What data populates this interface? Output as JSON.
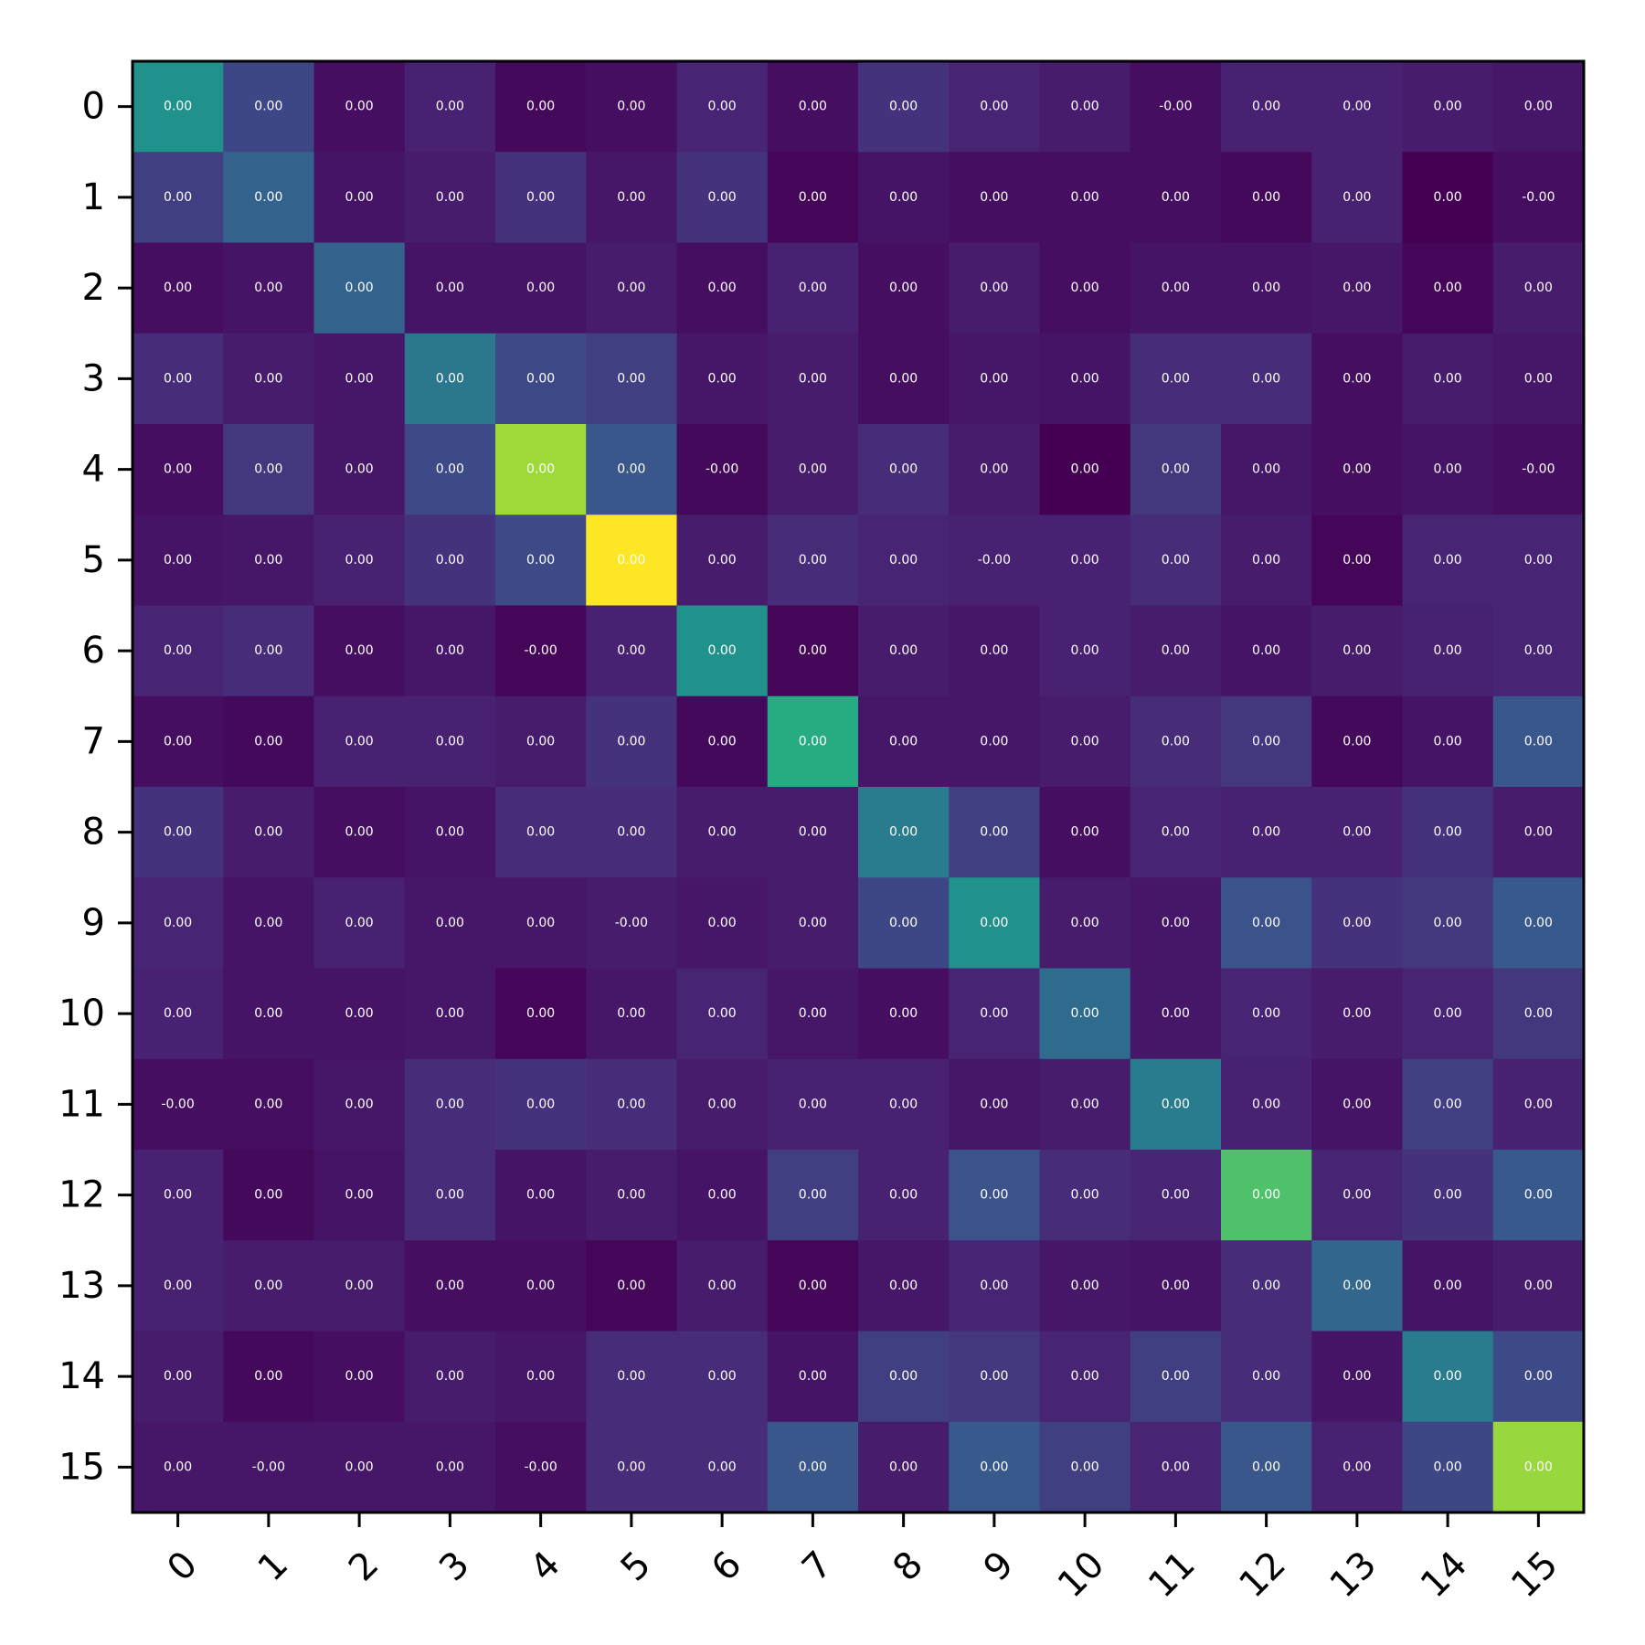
{
  "chart_data": {
    "type": "heatmap",
    "colormap": "viridis",
    "x_categories": [
      "0",
      "1",
      "2",
      "3",
      "4",
      "5",
      "6",
      "7",
      "8",
      "9",
      "10",
      "11",
      "12",
      "13",
      "14",
      "15"
    ],
    "y_categories": [
      "0",
      "1",
      "2",
      "3",
      "4",
      "5",
      "6",
      "7",
      "8",
      "9",
      "10",
      "11",
      "12",
      "13",
      "14",
      "15"
    ],
    "x_tick_rotation_deg": 45,
    "grid": false,
    "color_level": [
      [
        0.5,
        0.22,
        0.05,
        0.12,
        0.03,
        0.05,
        0.13,
        0.05,
        0.17,
        0.13,
        0.1,
        0.05,
        0.12,
        0.12,
        0.1,
        0.08
      ],
      [
        0.2,
        0.32,
        0.07,
        0.1,
        0.17,
        0.08,
        0.17,
        0.02,
        0.07,
        0.05,
        0.05,
        0.05,
        0.03,
        0.12,
        0.0,
        0.05
      ],
      [
        0.05,
        0.07,
        0.32,
        0.07,
        0.07,
        0.1,
        0.05,
        0.12,
        0.05,
        0.1,
        0.05,
        0.07,
        0.07,
        0.08,
        0.02,
        0.1
      ],
      [
        0.15,
        0.1,
        0.08,
        0.4,
        0.23,
        0.2,
        0.08,
        0.1,
        0.05,
        0.08,
        0.07,
        0.15,
        0.15,
        0.05,
        0.1,
        0.08
      ],
      [
        0.05,
        0.18,
        0.08,
        0.23,
        0.86,
        0.27,
        0.03,
        0.1,
        0.15,
        0.1,
        0.0,
        0.18,
        0.08,
        0.05,
        0.07,
        0.05
      ],
      [
        0.07,
        0.08,
        0.12,
        0.17,
        0.23,
        1.0,
        0.1,
        0.15,
        0.13,
        0.12,
        0.12,
        0.15,
        0.1,
        0.02,
        0.13,
        0.13
      ],
      [
        0.13,
        0.15,
        0.05,
        0.08,
        0.02,
        0.12,
        0.5,
        0.02,
        0.1,
        0.08,
        0.12,
        0.1,
        0.07,
        0.1,
        0.12,
        0.13
      ],
      [
        0.05,
        0.03,
        0.12,
        0.12,
        0.1,
        0.17,
        0.03,
        0.62,
        0.08,
        0.08,
        0.1,
        0.15,
        0.18,
        0.03,
        0.07,
        0.27
      ],
      [
        0.17,
        0.1,
        0.05,
        0.07,
        0.15,
        0.15,
        0.1,
        0.1,
        0.42,
        0.2,
        0.05,
        0.13,
        0.12,
        0.12,
        0.17,
        0.1
      ],
      [
        0.13,
        0.07,
        0.12,
        0.08,
        0.08,
        0.1,
        0.08,
        0.1,
        0.22,
        0.5,
        0.1,
        0.08,
        0.25,
        0.17,
        0.18,
        0.28
      ],
      [
        0.12,
        0.07,
        0.07,
        0.08,
        0.02,
        0.08,
        0.13,
        0.08,
        0.05,
        0.13,
        0.35,
        0.08,
        0.13,
        0.1,
        0.13,
        0.18
      ],
      [
        0.05,
        0.05,
        0.08,
        0.15,
        0.17,
        0.15,
        0.1,
        0.12,
        0.12,
        0.08,
        0.1,
        0.42,
        0.12,
        0.07,
        0.2,
        0.12
      ],
      [
        0.12,
        0.03,
        0.07,
        0.15,
        0.07,
        0.1,
        0.07,
        0.2,
        0.12,
        0.25,
        0.15,
        0.13,
        0.72,
        0.13,
        0.17,
        0.28
      ],
      [
        0.12,
        0.1,
        0.1,
        0.05,
        0.05,
        0.02,
        0.1,
        0.02,
        0.08,
        0.13,
        0.08,
        0.07,
        0.15,
        0.33,
        0.07,
        0.1
      ],
      [
        0.1,
        0.03,
        0.05,
        0.1,
        0.08,
        0.15,
        0.15,
        0.07,
        0.2,
        0.18,
        0.13,
        0.2,
        0.15,
        0.07,
        0.42,
        0.23
      ],
      [
        0.08,
        0.08,
        0.08,
        0.08,
        0.05,
        0.15,
        0.15,
        0.27,
        0.1,
        0.28,
        0.2,
        0.13,
        0.27,
        0.12,
        0.22,
        0.85
      ]
    ],
    "cell_labels": [
      [
        "0.00",
        "0.00",
        "0.00",
        "0.00",
        "0.00",
        "0.00",
        "0.00",
        "0.00",
        "0.00",
        "0.00",
        "0.00",
        "-0.00",
        "0.00",
        "0.00",
        "0.00",
        "0.00"
      ],
      [
        "0.00",
        "0.00",
        "0.00",
        "0.00",
        "0.00",
        "0.00",
        "0.00",
        "0.00",
        "0.00",
        "0.00",
        "0.00",
        "0.00",
        "0.00",
        "0.00",
        "0.00",
        "-0.00"
      ],
      [
        "0.00",
        "0.00",
        "0.00",
        "0.00",
        "0.00",
        "0.00",
        "0.00",
        "0.00",
        "0.00",
        "0.00",
        "0.00",
        "0.00",
        "0.00",
        "0.00",
        "0.00",
        "0.00"
      ],
      [
        "0.00",
        "0.00",
        "0.00",
        "0.00",
        "0.00",
        "0.00",
        "0.00",
        "0.00",
        "0.00",
        "0.00",
        "0.00",
        "0.00",
        "0.00",
        "0.00",
        "0.00",
        "0.00"
      ],
      [
        "0.00",
        "0.00",
        "0.00",
        "0.00",
        "0.00",
        "0.00",
        "-0.00",
        "0.00",
        "0.00",
        "0.00",
        "0.00",
        "0.00",
        "0.00",
        "0.00",
        "0.00",
        "-0.00"
      ],
      [
        "0.00",
        "0.00",
        "0.00",
        "0.00",
        "0.00",
        "0.00",
        "0.00",
        "0.00",
        "0.00",
        "-0.00",
        "0.00",
        "0.00",
        "0.00",
        "0.00",
        "0.00",
        "0.00"
      ],
      [
        "0.00",
        "0.00",
        "0.00",
        "0.00",
        "-0.00",
        "0.00",
        "0.00",
        "0.00",
        "0.00",
        "0.00",
        "0.00",
        "0.00",
        "0.00",
        "0.00",
        "0.00",
        "0.00"
      ],
      [
        "0.00",
        "0.00",
        "0.00",
        "0.00",
        "0.00",
        "0.00",
        "0.00",
        "0.00",
        "0.00",
        "0.00",
        "0.00",
        "0.00",
        "0.00",
        "0.00",
        "0.00",
        "0.00"
      ],
      [
        "0.00",
        "0.00",
        "0.00",
        "0.00",
        "0.00",
        "0.00",
        "0.00",
        "0.00",
        "0.00",
        "0.00",
        "0.00",
        "0.00",
        "0.00",
        "0.00",
        "0.00",
        "0.00"
      ],
      [
        "0.00",
        "0.00",
        "0.00",
        "0.00",
        "0.00",
        "-0.00",
        "0.00",
        "0.00",
        "0.00",
        "0.00",
        "0.00",
        "0.00",
        "0.00",
        "0.00",
        "0.00",
        "0.00"
      ],
      [
        "0.00",
        "0.00",
        "0.00",
        "0.00",
        "0.00",
        "0.00",
        "0.00",
        "0.00",
        "0.00",
        "0.00",
        "0.00",
        "0.00",
        "0.00",
        "0.00",
        "0.00",
        "0.00"
      ],
      [
        "-0.00",
        "0.00",
        "0.00",
        "0.00",
        "0.00",
        "0.00",
        "0.00",
        "0.00",
        "0.00",
        "0.00",
        "0.00",
        "0.00",
        "0.00",
        "0.00",
        "0.00",
        "0.00"
      ],
      [
        "0.00",
        "0.00",
        "0.00",
        "0.00",
        "0.00",
        "0.00",
        "0.00",
        "0.00",
        "0.00",
        "0.00",
        "0.00",
        "0.00",
        "0.00",
        "0.00",
        "0.00",
        "0.00"
      ],
      [
        "0.00",
        "0.00",
        "0.00",
        "0.00",
        "0.00",
        "0.00",
        "0.00",
        "0.00",
        "0.00",
        "0.00",
        "0.00",
        "0.00",
        "0.00",
        "0.00",
        "0.00",
        "0.00"
      ],
      [
        "0.00",
        "0.00",
        "0.00",
        "0.00",
        "0.00",
        "0.00",
        "0.00",
        "0.00",
        "0.00",
        "0.00",
        "0.00",
        "0.00",
        "0.00",
        "0.00",
        "0.00",
        "0.00"
      ],
      [
        "0.00",
        "-0.00",
        "0.00",
        "0.00",
        "-0.00",
        "0.00",
        "0.00",
        "0.00",
        "0.00",
        "0.00",
        "0.00",
        "0.00",
        "0.00",
        "0.00",
        "0.00",
        "0.00"
      ]
    ]
  }
}
